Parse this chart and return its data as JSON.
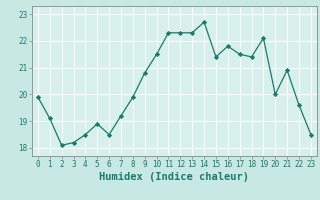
{
  "x": [
    0,
    1,
    2,
    3,
    4,
    5,
    6,
    7,
    8,
    9,
    10,
    11,
    12,
    13,
    14,
    15,
    16,
    17,
    18,
    19,
    20,
    21,
    22,
    23
  ],
  "y": [
    19.9,
    19.1,
    18.1,
    18.2,
    18.5,
    18.9,
    18.5,
    19.2,
    19.9,
    20.8,
    21.5,
    22.3,
    22.3,
    22.3,
    22.7,
    21.4,
    21.8,
    21.5,
    21.4,
    22.1,
    20.0,
    20.9,
    19.6,
    18.5
  ],
  "line_color": "#1a7a6e",
  "marker": "D",
  "marker_size": 2.2,
  "bg_color": "#c8e8e4",
  "plot_bg_color": "#d8f0ec",
  "grid_color": "#ffffff",
  "xlabel": "Humidex (Indice chaleur)",
  "ylim": [
    17.7,
    23.3
  ],
  "xlim": [
    -0.5,
    23.5
  ],
  "yticks": [
    18,
    19,
    20,
    21,
    22,
    23
  ],
  "xticks": [
    0,
    1,
    2,
    3,
    4,
    5,
    6,
    7,
    8,
    9,
    10,
    11,
    12,
    13,
    14,
    15,
    16,
    17,
    18,
    19,
    20,
    21,
    22,
    23
  ],
  "tick_fontsize": 5.5,
  "xlabel_fontsize": 7.5,
  "axis_color": "#1a7a6e",
  "spine_color": "#888888"
}
